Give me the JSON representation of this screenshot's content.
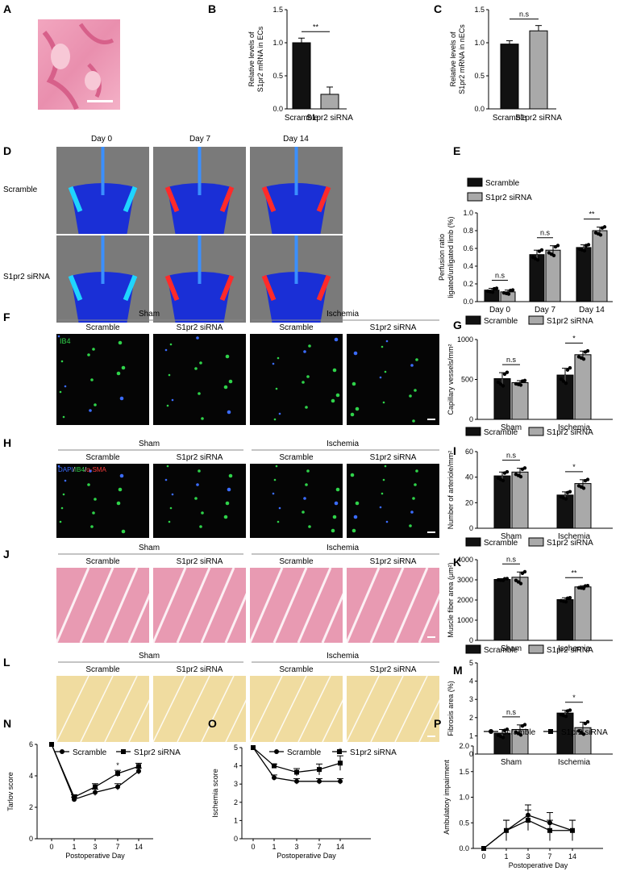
{
  "panels": {
    "A": {
      "letter": "A"
    },
    "B": {
      "letter": "B"
    },
    "C": {
      "letter": "C"
    },
    "D": {
      "letter": "D",
      "columns": [
        "Day 0",
        "Day 7",
        "Day 14"
      ],
      "rows": [
        "Scramble",
        "S1pr2 siRNA"
      ]
    },
    "E": {
      "letter": "E"
    },
    "F": {
      "letter": "F",
      "groups": [
        "Sham",
        "Ischemia"
      ],
      "columns": [
        "Scramble",
        "S1pr2 siRNA",
        "Scramble",
        "S1pr2 siRNA"
      ],
      "inset": "IB4"
    },
    "G": {
      "letter": "G"
    },
    "H": {
      "letter": "H",
      "groups": [
        "Sham",
        "Ischemia"
      ],
      "columns": [
        "Scramble",
        "S1pr2 siRNA",
        "Scramble",
        "S1pr2 siRNA"
      ],
      "inset_parts": [
        "DAPI",
        "/",
        "IB4",
        "/",
        "α-SMA"
      ]
    },
    "I": {
      "letter": "I"
    },
    "J": {
      "letter": "J",
      "groups": [
        "Sham",
        "Ischemia"
      ],
      "columns": [
        "Scramble",
        "S1pr2 siRNA",
        "Scramble",
        "S1pr2 siRNA"
      ]
    },
    "K": {
      "letter": "K"
    },
    "L": {
      "letter": "L",
      "groups": [
        "Sham",
        "Ischemia"
      ],
      "columns": [
        "Scramble",
        "S1pr2 siRNA",
        "Scramble",
        "S1pr2 siRNA"
      ]
    },
    "M": {
      "letter": "M"
    },
    "N": {
      "letter": "N"
    },
    "O": {
      "letter": "O"
    },
    "P": {
      "letter": "P"
    }
  },
  "colors": {
    "scramble": "#111111",
    "sirna": "#a9a9a9",
    "he": "#e89ab2",
    "sirius": "#f0dca0",
    "laser_bg": "#7a7a7a",
    "fluor_bg": "#050505"
  },
  "chart_data": [
    {
      "id": "B",
      "type": "bar",
      "categories": [
        "Scramble",
        "S1pr2 siRNA"
      ],
      "values": [
        1.0,
        0.22
      ],
      "errors": [
        0.07,
        0.11
      ],
      "ylabel": [
        "Relative levels of",
        "S1pr2 mRNA in ECs"
      ],
      "ylim": [
        0,
        1.5
      ],
      "yticks": [
        "0.0",
        "0.5",
        "1.0",
        "1.5"
      ],
      "significance": "**"
    },
    {
      "id": "C",
      "type": "bar",
      "categories": [
        "Scramble",
        "S1pr2 siRNA"
      ],
      "values": [
        0.98,
        1.18
      ],
      "errors": [
        0.05,
        0.08
      ],
      "ylabel": [
        "Relative levels of",
        "S1pr2 mRNA in nECs"
      ],
      "ylim": [
        0,
        1.5
      ],
      "yticks": [
        "0.0",
        "0.5",
        "1.0",
        "1.5"
      ],
      "significance": "n.s"
    },
    {
      "id": "E",
      "type": "bar",
      "legend": [
        "Scramble",
        "S1pr2 siRNA"
      ],
      "categories": [
        "Day 0",
        "Day 7",
        "Day 14"
      ],
      "series": [
        {
          "name": "Scramble",
          "values": [
            0.13,
            0.53,
            0.61
          ],
          "errors": [
            0.02,
            0.05,
            0.03
          ]
        },
        {
          "name": "S1pr2 siRNA",
          "values": [
            0.11,
            0.58,
            0.8
          ],
          "errors": [
            0.02,
            0.05,
            0.04
          ]
        }
      ],
      "ylabel": [
        "Perfusion ratio",
        "ligated/unligated limb (%)"
      ],
      "ylim": [
        0,
        1.0
      ],
      "yticks": [
        "0.0",
        "0.2",
        "0.4",
        "0.6",
        "0.8",
        "1.0"
      ],
      "significance": [
        "n.s",
        "n.s",
        "**"
      ]
    },
    {
      "id": "G",
      "type": "bar",
      "legend": [
        "Scramble",
        "S1pr2 siRNA"
      ],
      "categories": [
        "Sham",
        "Ischemia"
      ],
      "series": [
        {
          "name": "Scramble",
          "values": [
            510,
            555
          ],
          "errors": [
            75,
            85
          ]
        },
        {
          "name": "S1pr2 siRNA",
          "values": [
            460,
            810
          ],
          "errors": [
            25,
            45
          ]
        }
      ],
      "ylabel": [
        "Capillary vessels/mm²"
      ],
      "ylim": [
        0,
        1000
      ],
      "yticks": [
        "0",
        "500",
        "1000"
      ],
      "significance": [
        "n.s",
        "*"
      ]
    },
    {
      "id": "I",
      "type": "bar",
      "legend": [
        "Scramble",
        "S1pr2 siRNA"
      ],
      "categories": [
        "Sham",
        "Ischemia"
      ],
      "series": [
        {
          "name": "Scramble",
          "values": [
            41,
            26
          ],
          "errors": [
            3,
            2.5
          ]
        },
        {
          "name": "S1pr2 siRNA",
          "values": [
            44,
            35
          ],
          "errors": [
            3,
            3
          ]
        }
      ],
      "ylabel": [
        "Number of arteriole/mm²"
      ],
      "ylim": [
        0,
        60
      ],
      "yticks": [
        "0",
        "20",
        "40",
        "60"
      ],
      "significance": [
        "n.s",
        "*"
      ]
    },
    {
      "id": "K",
      "type": "bar",
      "legend": [
        "Scramble",
        "S1pr2 siRNA"
      ],
      "categories": [
        "Sham",
        "Ischemia"
      ],
      "series": [
        {
          "name": "Scramble",
          "values": [
            3020,
            2020
          ],
          "errors": [
            40,
            90
          ]
        },
        {
          "name": "S1pr2 siRNA",
          "values": [
            3130,
            2650
          ],
          "errors": [
            260,
            60
          ]
        }
      ],
      "ylabel": [
        "Muscle fiber area (μm²)"
      ],
      "ylim": [
        0,
        4000
      ],
      "yticks": [
        "0",
        "1000",
        "2000",
        "3000",
        "4000"
      ],
      "significance": [
        "n.s",
        "**"
      ]
    },
    {
      "id": "M",
      "type": "bar",
      "legend": [
        "Scramble",
        "S1pr2 siRNA"
      ],
      "categories": [
        "Sham",
        "Ischemia"
      ],
      "series": [
        {
          "name": "Scramble",
          "values": [
            1.15,
            2.25
          ],
          "errors": [
            0.2,
            0.15
          ]
        },
        {
          "name": "S1pr2 siRNA",
          "values": [
            1.35,
            1.45
          ],
          "errors": [
            0.25,
            0.3
          ]
        }
      ],
      "ylabel": [
        "Fibrosis area (%)"
      ],
      "ylim": [
        0,
        5
      ],
      "yticks": [
        "0",
        "1",
        "2",
        "3",
        "4",
        "5"
      ],
      "significance": [
        "n.s",
        "*"
      ]
    },
    {
      "id": "N",
      "type": "line",
      "legend": [
        "Scramble",
        "S1pr2 siRNA"
      ],
      "x": [
        "0",
        "1",
        "3",
        "7",
        "14"
      ],
      "series": [
        {
          "name": "Scramble",
          "values": [
            6.0,
            2.5,
            2.95,
            3.3,
            4.3
          ],
          "errors": [
            0,
            0.15,
            0.2,
            0.2,
            0.2
          ]
        },
        {
          "name": "S1pr2 siRNA",
          "values": [
            6.0,
            2.65,
            3.3,
            4.15,
            4.6
          ],
          "errors": [
            0,
            0.15,
            0.2,
            0.2,
            0.2
          ]
        }
      ],
      "xlabel": "Postoperative Day",
      "ylabel": [
        "Tarlov score"
      ],
      "ylim": [
        0,
        6
      ],
      "yticks": [
        "0",
        "2",
        "4",
        "6"
      ],
      "significance_at": 3,
      "significance": "*"
    },
    {
      "id": "O",
      "type": "line",
      "legend": [
        "Scramble",
        "S1pr2 siRNA"
      ],
      "x": [
        "0",
        "1",
        "3",
        "7",
        "14"
      ],
      "series": [
        {
          "name": "Scramble",
          "values": [
            5.0,
            3.35,
            3.15,
            3.15,
            3.15
          ],
          "errors": [
            0,
            0.15,
            0.15,
            0.15,
            0.15
          ]
        },
        {
          "name": "S1pr2 siRNA",
          "values": [
            5.0,
            4.0,
            3.65,
            3.8,
            4.15
          ],
          "errors": [
            0,
            0.1,
            0.2,
            0.3,
            0.4
          ]
        }
      ],
      "xlabel": "Postoperative Day",
      "ylabel": [
        "Ischemia score"
      ],
      "ylim": [
        0,
        5
      ],
      "yticks": [
        "0",
        "1",
        "2",
        "3",
        "4",
        "5"
      ],
      "significance_at": 4,
      "significance": "*"
    },
    {
      "id": "P",
      "type": "line",
      "legend": [
        "Scramble",
        "S1pr2 siRNA"
      ],
      "x": [
        "0",
        "1",
        "3",
        "7",
        "14"
      ],
      "series": [
        {
          "name": "Scramble",
          "values": [
            0,
            0.35,
            0.65,
            0.5,
            0.35
          ],
          "errors": [
            0,
            0.2,
            0.2,
            0.2,
            0.2
          ]
        },
        {
          "name": "S1pr2 siRNA",
          "values": [
            0,
            0.35,
            0.55,
            0.35,
            0.35
          ],
          "errors": [
            0,
            0.2,
            0.2,
            0.2,
            0.2
          ]
        }
      ],
      "xlabel": "Postoperative Day",
      "ylabel": [
        "Ambulatory impairment"
      ],
      "ylim": [
        0,
        2
      ],
      "yticks": [
        "0.0",
        "0.5",
        "1.0",
        "1.5",
        "2.0"
      ]
    }
  ]
}
